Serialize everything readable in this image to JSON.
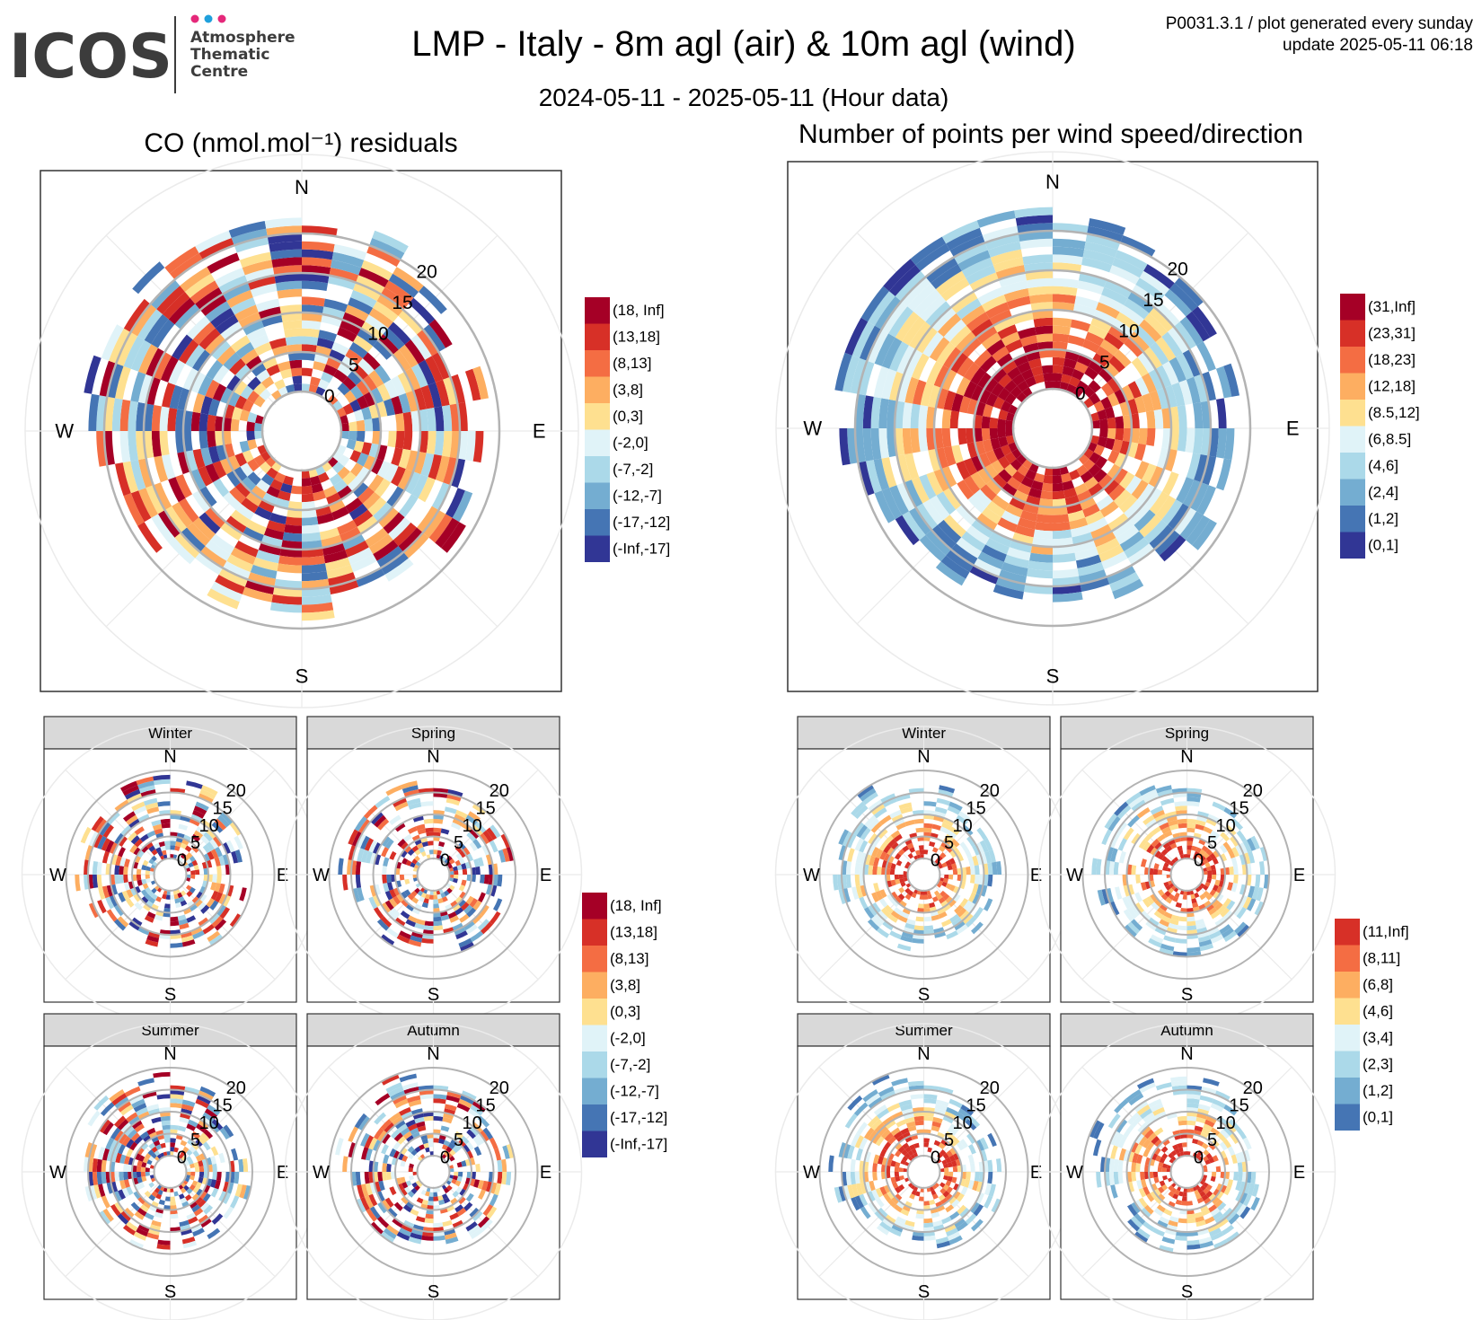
{
  "header": {
    "logo_text": "ICOS",
    "logo_sub": [
      "Atmosphere",
      "Thematic",
      "Centre"
    ],
    "title": "LMP - Italy - 8m agl (air) & 10m agl (wind)",
    "subtitle": "2024-05-11 - 2025-05-11 (Hour data)",
    "meta_line1": "P0031.3.1 / plot generated every sunday",
    "meta_line2": "update  2025-05-11 06:18"
  },
  "colors": {
    "logo_dots": [
      "#e5287a",
      "#1fa0dc",
      "#e5287a"
    ],
    "scale_10": [
      "#313695",
      "#4575b4",
      "#74add1",
      "#abd9e9",
      "#e0f3f8",
      "#fee090",
      "#fdae61",
      "#f46d43",
      "#d73027",
      "#a50026"
    ],
    "panel_strip": "#d9d9d9",
    "grid": "#b3b3b3",
    "grid_light": "#ebebeb"
  },
  "chart_data": [
    {
      "type": "heatmap",
      "subtype": "polar",
      "title": "CO (nmol.mol⁻¹) residuals",
      "compass": [
        "N",
        "E",
        "S",
        "W"
      ],
      "radial_ticks": [
        0,
        5,
        10,
        15,
        20
      ],
      "legend": [
        "(18, Inf]",
        "(13,18]",
        "(8,13]",
        "(3,8]",
        "(0,3]",
        "(-2,0]",
        "(-7,-2]",
        "(-12,-7]",
        "(-17,-12]",
        "(-Inf,-17]"
      ]
    },
    {
      "type": "heatmap",
      "subtype": "polar",
      "title": "Number of points per wind speed/direction",
      "compass": [
        "N",
        "E",
        "S",
        "W"
      ],
      "radial_ticks": [
        0,
        5,
        10,
        15,
        20
      ],
      "legend": [
        "(31,Inf]",
        "(23,31]",
        "(18,23]",
        "(12,18]",
        "(8.5,12]",
        "(6,8.5]",
        "(4,6]",
        "(2,4]",
        "(1,2]",
        "(0,1]"
      ]
    },
    {
      "type": "heatmap",
      "subtype": "polar-faceted",
      "facets": [
        "Winter",
        "Spring",
        "Summer",
        "Autumn"
      ],
      "compass": [
        "N",
        "E",
        "S",
        "W"
      ],
      "radial_ticks": [
        0,
        5,
        10,
        15,
        20
      ],
      "legend": [
        "(18, Inf]",
        "(13,18]",
        "(8,13]",
        "(3,8]",
        "(0,3]",
        "(-2,0]",
        "(-7,-2]",
        "(-12,-7]",
        "(-17,-12]",
        "(-Inf,-17]"
      ]
    },
    {
      "type": "heatmap",
      "subtype": "polar-faceted",
      "facets": [
        "Winter",
        "Spring",
        "Summer",
        "Autumn"
      ],
      "compass": [
        "N",
        "E",
        "S",
        "W"
      ],
      "radial_ticks": [
        0,
        5,
        10,
        15,
        20
      ],
      "legend": [
        "(11,Inf]",
        "(8,11]",
        "(6,8]",
        "(4,6]",
        "(3,4]",
        "(2,3]",
        "(1,2]",
        "(0,1]"
      ]
    }
  ]
}
